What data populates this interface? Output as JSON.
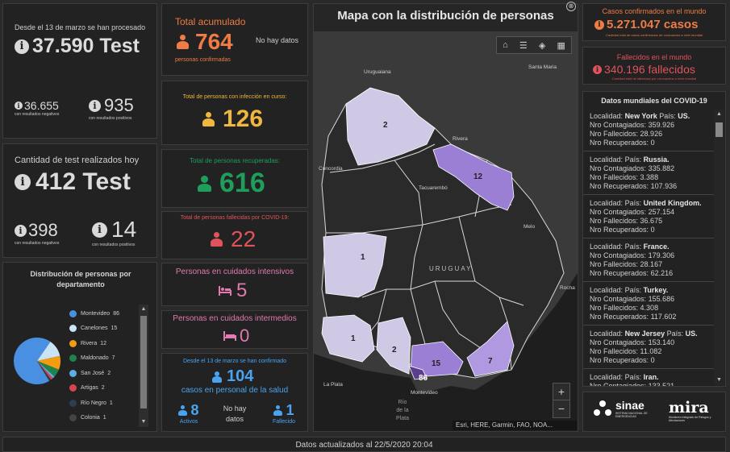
{
  "left": {
    "procesados": {
      "caption": "Desde el 13 de marzo se han procesado",
      "value": "37.590 Test",
      "negativos_value": "36.655",
      "negativos_caption": "con resultados negativos",
      "positivos_value": "935",
      "positivos_caption": "con resultados positivos"
    },
    "hoy": {
      "caption": "Cantidad de test realizados hoy",
      "value": "412 Test",
      "negativos_value": "398",
      "negativos_caption": "con resultados negativos",
      "positivos_value": "14",
      "positivos_caption": "con resultados positivos"
    },
    "distribucion": {
      "title": "Distribución de personas por departamento",
      "items": [
        {
          "label": "Montevideo",
          "value": "86",
          "color": "#4a90e2"
        },
        {
          "label": "Canelones",
          "value": "15",
          "color": "#c9e3f7"
        },
        {
          "label": "Rivera",
          "value": "12",
          "color": "#f39c12"
        },
        {
          "label": "Maldonado",
          "value": "7",
          "color": "#1e8449"
        },
        {
          "label": "San José",
          "value": "2",
          "color": "#5dade2"
        },
        {
          "label": "Artigas",
          "value": "2",
          "color": "#d64550"
        },
        {
          "label": "Río Negro",
          "value": "1",
          "color": "#2c3e50"
        },
        {
          "label": "Colonia",
          "value": "1",
          "color": "#444444"
        }
      ],
      "chart_data": {
        "type": "pie",
        "categories": [
          "Montevideo",
          "Canelones",
          "Rivera",
          "Maldonado",
          "San José",
          "Artigas",
          "Río Negro",
          "Colonia"
        ],
        "values": [
          86,
          15,
          12,
          7,
          2,
          2,
          1,
          1
        ]
      }
    }
  },
  "middle": {
    "acumulado": {
      "title": "Total acumulado",
      "value": "764",
      "caption": "personas confirmadas",
      "no_data": "No hay datos",
      "color": "#ef7b45"
    },
    "en_curso": {
      "title": "Total de personas con infección en curso:",
      "value": "126",
      "color": "#f0b73e"
    },
    "recuperadas": {
      "title": "Total de personas recuperadas:",
      "value": "616",
      "color": "#1e9e5a"
    },
    "fallecidas": {
      "title": "Total de personas fallecidas por COVID-19:",
      "value": "22",
      "color": "#e0535b"
    },
    "intensivos": {
      "title": "Personas en cuidados intensivos",
      "value": "5",
      "color": "#e07ab0"
    },
    "intermedios": {
      "title": "Personas en cuidados intermedios",
      "value": "0",
      "color": "#e07ab0"
    },
    "salud": {
      "caption_top": "Desde el 13 de marzo se han confirmado",
      "value": "104",
      "caption_mid": "casos en personal de la salud",
      "activos_value": "8",
      "activos_label": "Activos",
      "no_data_line1": "No hay",
      "no_data_line2": "datos",
      "fallecido_value": "1",
      "fallecido_label": "Fallecido",
      "color": "#4aa3f0"
    }
  },
  "map": {
    "title": "Mapa con la distribución de personas",
    "country_label": "URUGUAY",
    "places": [
      "Uruguaiana",
      "Santa Maria",
      "Rivera",
      "Concordia",
      "Tacuarembó",
      "Melo",
      "Rocha",
      "La Plata",
      "Montevideo",
      "Río de la Plata"
    ],
    "river_lines": [
      "Río",
      "de la",
      "Plata"
    ],
    "counts": {
      "artigas": "2",
      "rivera": "12",
      "rio_negro": "1",
      "colonia": "1",
      "san_jose": "2",
      "montevideo": "86",
      "canelones": "15",
      "maldonado": "7"
    },
    "attribution": "Esri, HERE, Garmin, FAO, NOA...",
    "zoom_in": "+",
    "zoom_out": "−"
  },
  "right": {
    "confirmados": {
      "title": "Casos confirmados en el mundo",
      "value": "5.271.047 casos",
      "caption": "Cantidad total de casos confirmados de coronavirus a nivel mundial",
      "color": "#ef7b45"
    },
    "fallecidos": {
      "title": "Fallecidos en el mundo",
      "value": "340.196 fallecidos",
      "caption": "Cantidad total de fallecidos por coronavirus a nivel mundial",
      "color": "#e0535b"
    },
    "mundiales": {
      "title": "Datos mundiales del COVID-19",
      "labels": {
        "localidad": "Localidad:",
        "pais": "País:",
        "contagiados": "Nro Contagiados:",
        "fallecidos": "Nro Fallecidos:",
        "recuperados": "Nro Recuperados:"
      },
      "items": [
        {
          "localidad": "New York",
          "pais": "US.",
          "contagiados": "359.926",
          "fallecidos": "28.926",
          "recuperados": "0"
        },
        {
          "localidad": "",
          "pais": "Russia.",
          "contagiados": "335.882",
          "fallecidos": "3.388",
          "recuperados": "107.936"
        },
        {
          "localidad": "",
          "pais": "United Kingdom.",
          "contagiados": "257.154",
          "fallecidos": "36.675",
          "recuperados": "0"
        },
        {
          "localidad": "",
          "pais": "France.",
          "contagiados": "179.306",
          "fallecidos": "28.167",
          "recuperados": "62.216"
        },
        {
          "localidad": "",
          "pais": "Turkey.",
          "contagiados": "155.686",
          "fallecidos": "4.308",
          "recuperados": "117.602"
        },
        {
          "localidad": "New Jersey",
          "pais": "US.",
          "contagiados": "153.140",
          "fallecidos": "11.082",
          "recuperados": "0"
        },
        {
          "localidad": "",
          "pais": "Iran.",
          "contagiados": "133.521",
          "fallecidos": "",
          "recuperados": ""
        }
      ]
    },
    "logos": {
      "sinae": "sinae",
      "sinae_sub": "SISTEMA NACIONAL DE EMERGENCIAS",
      "mira": "mira",
      "mira_sub": "Monitoreo Integrado de Riesgos y Afectaciones"
    }
  },
  "footer": {
    "text": "Datos actualizados al 22/5/2020 20:04"
  }
}
